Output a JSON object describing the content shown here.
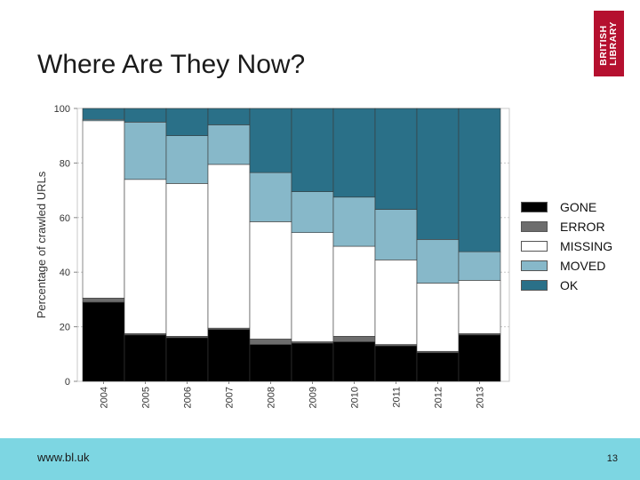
{
  "slide": {
    "title": "Where Are They Now?"
  },
  "logo": {
    "line1": "BRITISH",
    "line2": "LIBRARY",
    "color": "#b5102f"
  },
  "footer": {
    "url": "www.bl.uk",
    "page_number": "13",
    "color": "#7dd6e2"
  },
  "chart_data": {
    "type": "bar",
    "stacked": true,
    "title": "",
    "xlabel": "",
    "ylabel": "Percentage of crawled URLs",
    "ylim": [
      0,
      100
    ],
    "yticks": [
      "0",
      "20",
      "40",
      "60",
      "80",
      "100"
    ],
    "grid": true,
    "legend_position": "right",
    "categories": [
      "2004",
      "2005",
      "2006",
      "2007",
      "2008",
      "2009",
      "2010",
      "2011",
      "2012",
      "2013"
    ],
    "series": [
      {
        "name": "GONE",
        "color": "#000000",
        "values": [
          29,
          17,
          16,
          19,
          13.5,
          14,
          14.5,
          13,
          10.5,
          17
        ]
      },
      {
        "name": "ERROR",
        "color": "#6d6d6d",
        "values": [
          1.5,
          0.5,
          0.5,
          0.5,
          2,
          0.5,
          2,
          0.5,
          0.5,
          0.5
        ]
      },
      {
        "name": "MISSING",
        "color": "#ffffff",
        "values": [
          65,
          56.5,
          56,
          60,
          43,
          40,
          33,
          31,
          25,
          19.5
        ]
      },
      {
        "name": "MOVED",
        "color": "#87b8c9",
        "values": [
          0.5,
          21,
          17.5,
          14.5,
          18,
          15,
          18,
          18.5,
          16,
          10.5
        ]
      },
      {
        "name": "OK",
        "color": "#2a7088",
        "values": [
          4,
          5,
          10,
          6,
          23.5,
          30.5,
          32.5,
          37,
          48,
          52.5
        ]
      }
    ]
  }
}
